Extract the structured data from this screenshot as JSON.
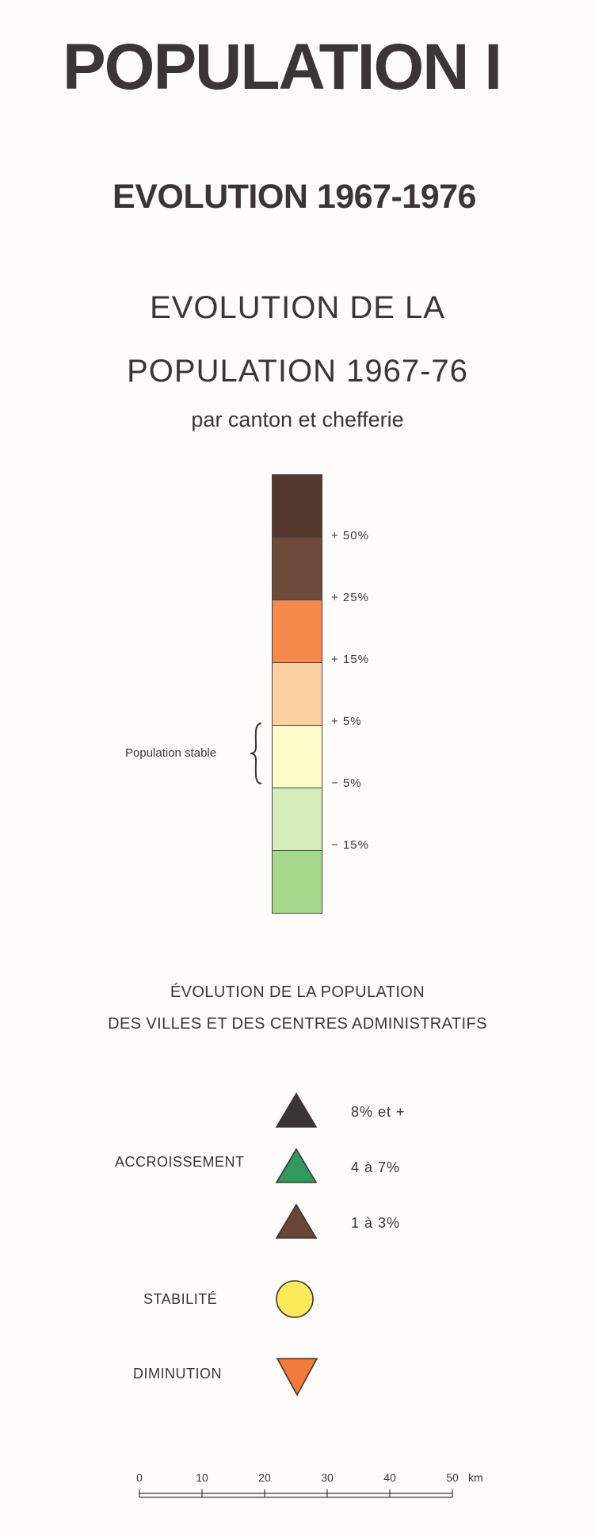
{
  "header": {
    "title": "POPULATION I",
    "subtitle": "EVOLUTION 1967-1976"
  },
  "legend_ramp": {
    "title_line1": "EVOLUTION DE LA",
    "title_line2": "POPULATION 1967-76",
    "subtitle": "par canton et chefferie",
    "classes": [
      {
        "color": "#54392c"
      },
      {
        "color": "#6d4a3a"
      },
      {
        "color": "#f68a4c"
      },
      {
        "color": "#fdd0a2"
      },
      {
        "color": "#fdfbc9"
      },
      {
        "color": "#d6ecbb"
      },
      {
        "color": "#a6d88c"
      }
    ],
    "thresholds": [
      "+ 50%",
      "+ 25%",
      "+ 15%",
      "+ 5%",
      "− 5%",
      "− 15%"
    ],
    "stable_label": "Population stable"
  },
  "legend_symbols": {
    "title_line1": "ÉVOLUTION DE LA POPULATION",
    "title_line2": "DES VILLES ET DES CENTRES ADMINISTRATIFS",
    "accroissement": {
      "label": "ACCROISSEMENT",
      "items": [
        {
          "text": "8% et +",
          "color": "#3a3533",
          "icon": "triangle-up-icon"
        },
        {
          "text": "4 à 7%",
          "color": "#2e9a5c",
          "icon": "triangle-up-icon"
        },
        {
          "text": "1 à 3%",
          "color": "#6a4637",
          "icon": "triangle-up-icon"
        }
      ]
    },
    "stabilite": {
      "label": "STABILITÉ",
      "color": "#fdea5a",
      "icon": "circle-icon"
    },
    "diminution": {
      "label": "DIMINUTION",
      "color": "#f47a3c",
      "icon": "triangle-down-icon"
    }
  },
  "scale_bar": {
    "ticks": [
      "0",
      "10",
      "20",
      "30",
      "40",
      "50"
    ],
    "unit": "km"
  }
}
